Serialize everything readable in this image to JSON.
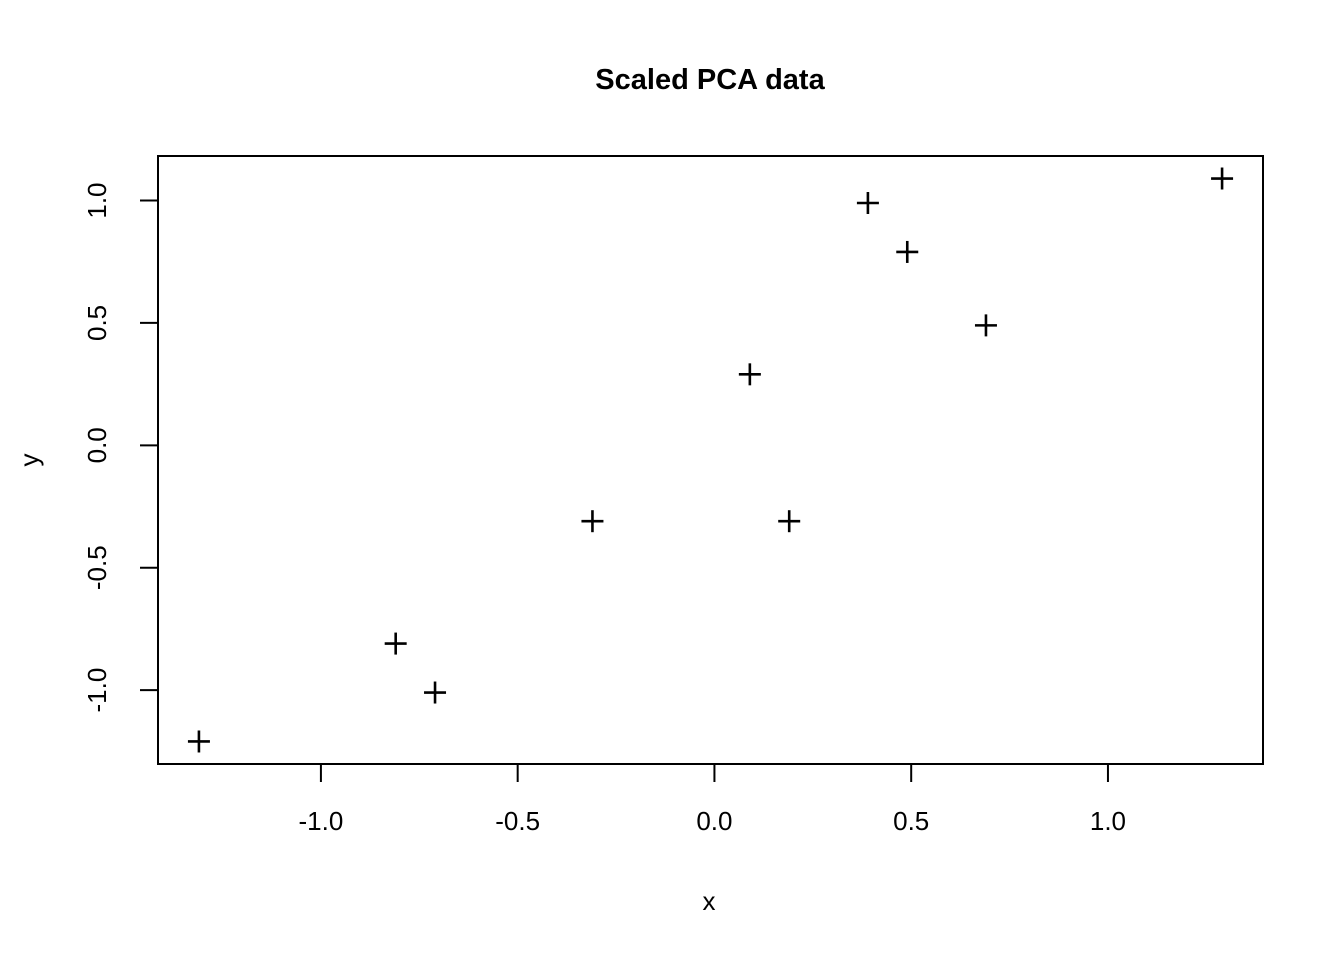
{
  "chart_data": {
    "type": "scatter",
    "title": "Scaled PCA data",
    "xlabel": "x",
    "ylabel": "y",
    "xlim": [
      -1.414,
      1.394
    ],
    "ylim": [
      -1.302,
      1.182
    ],
    "grid": false,
    "legend": null,
    "marker": "plus",
    "x_ticks": {
      "values": [
        -1.0,
        -0.5,
        0.0,
        0.5,
        1.0
      ],
      "labels": [
        "-1.0",
        "-0.5",
        "0.0",
        "0.5",
        "1.0"
      ]
    },
    "y_ticks": {
      "values": [
        -1.0,
        -0.5,
        0.0,
        0.5,
        1.0
      ],
      "labels": [
        "-1.0",
        "-0.5",
        "0.0",
        "0.5",
        "1.0"
      ]
    },
    "points": [
      {
        "x": 0.69,
        "y": 0.49
      },
      {
        "x": -1.31,
        "y": -1.21
      },
      {
        "x": 0.39,
        "y": 0.99
      },
      {
        "x": 0.09,
        "y": 0.29
      },
      {
        "x": 1.29,
        "y": 1.09
      },
      {
        "x": 0.49,
        "y": 0.79
      },
      {
        "x": 0.19,
        "y": -0.31
      },
      {
        "x": -0.81,
        "y": -0.81
      },
      {
        "x": -0.31,
        "y": -0.31
      },
      {
        "x": -0.71,
        "y": -1.01
      }
    ],
    "colors": {
      "foreground": "#000000",
      "background": "#ffffff"
    }
  }
}
